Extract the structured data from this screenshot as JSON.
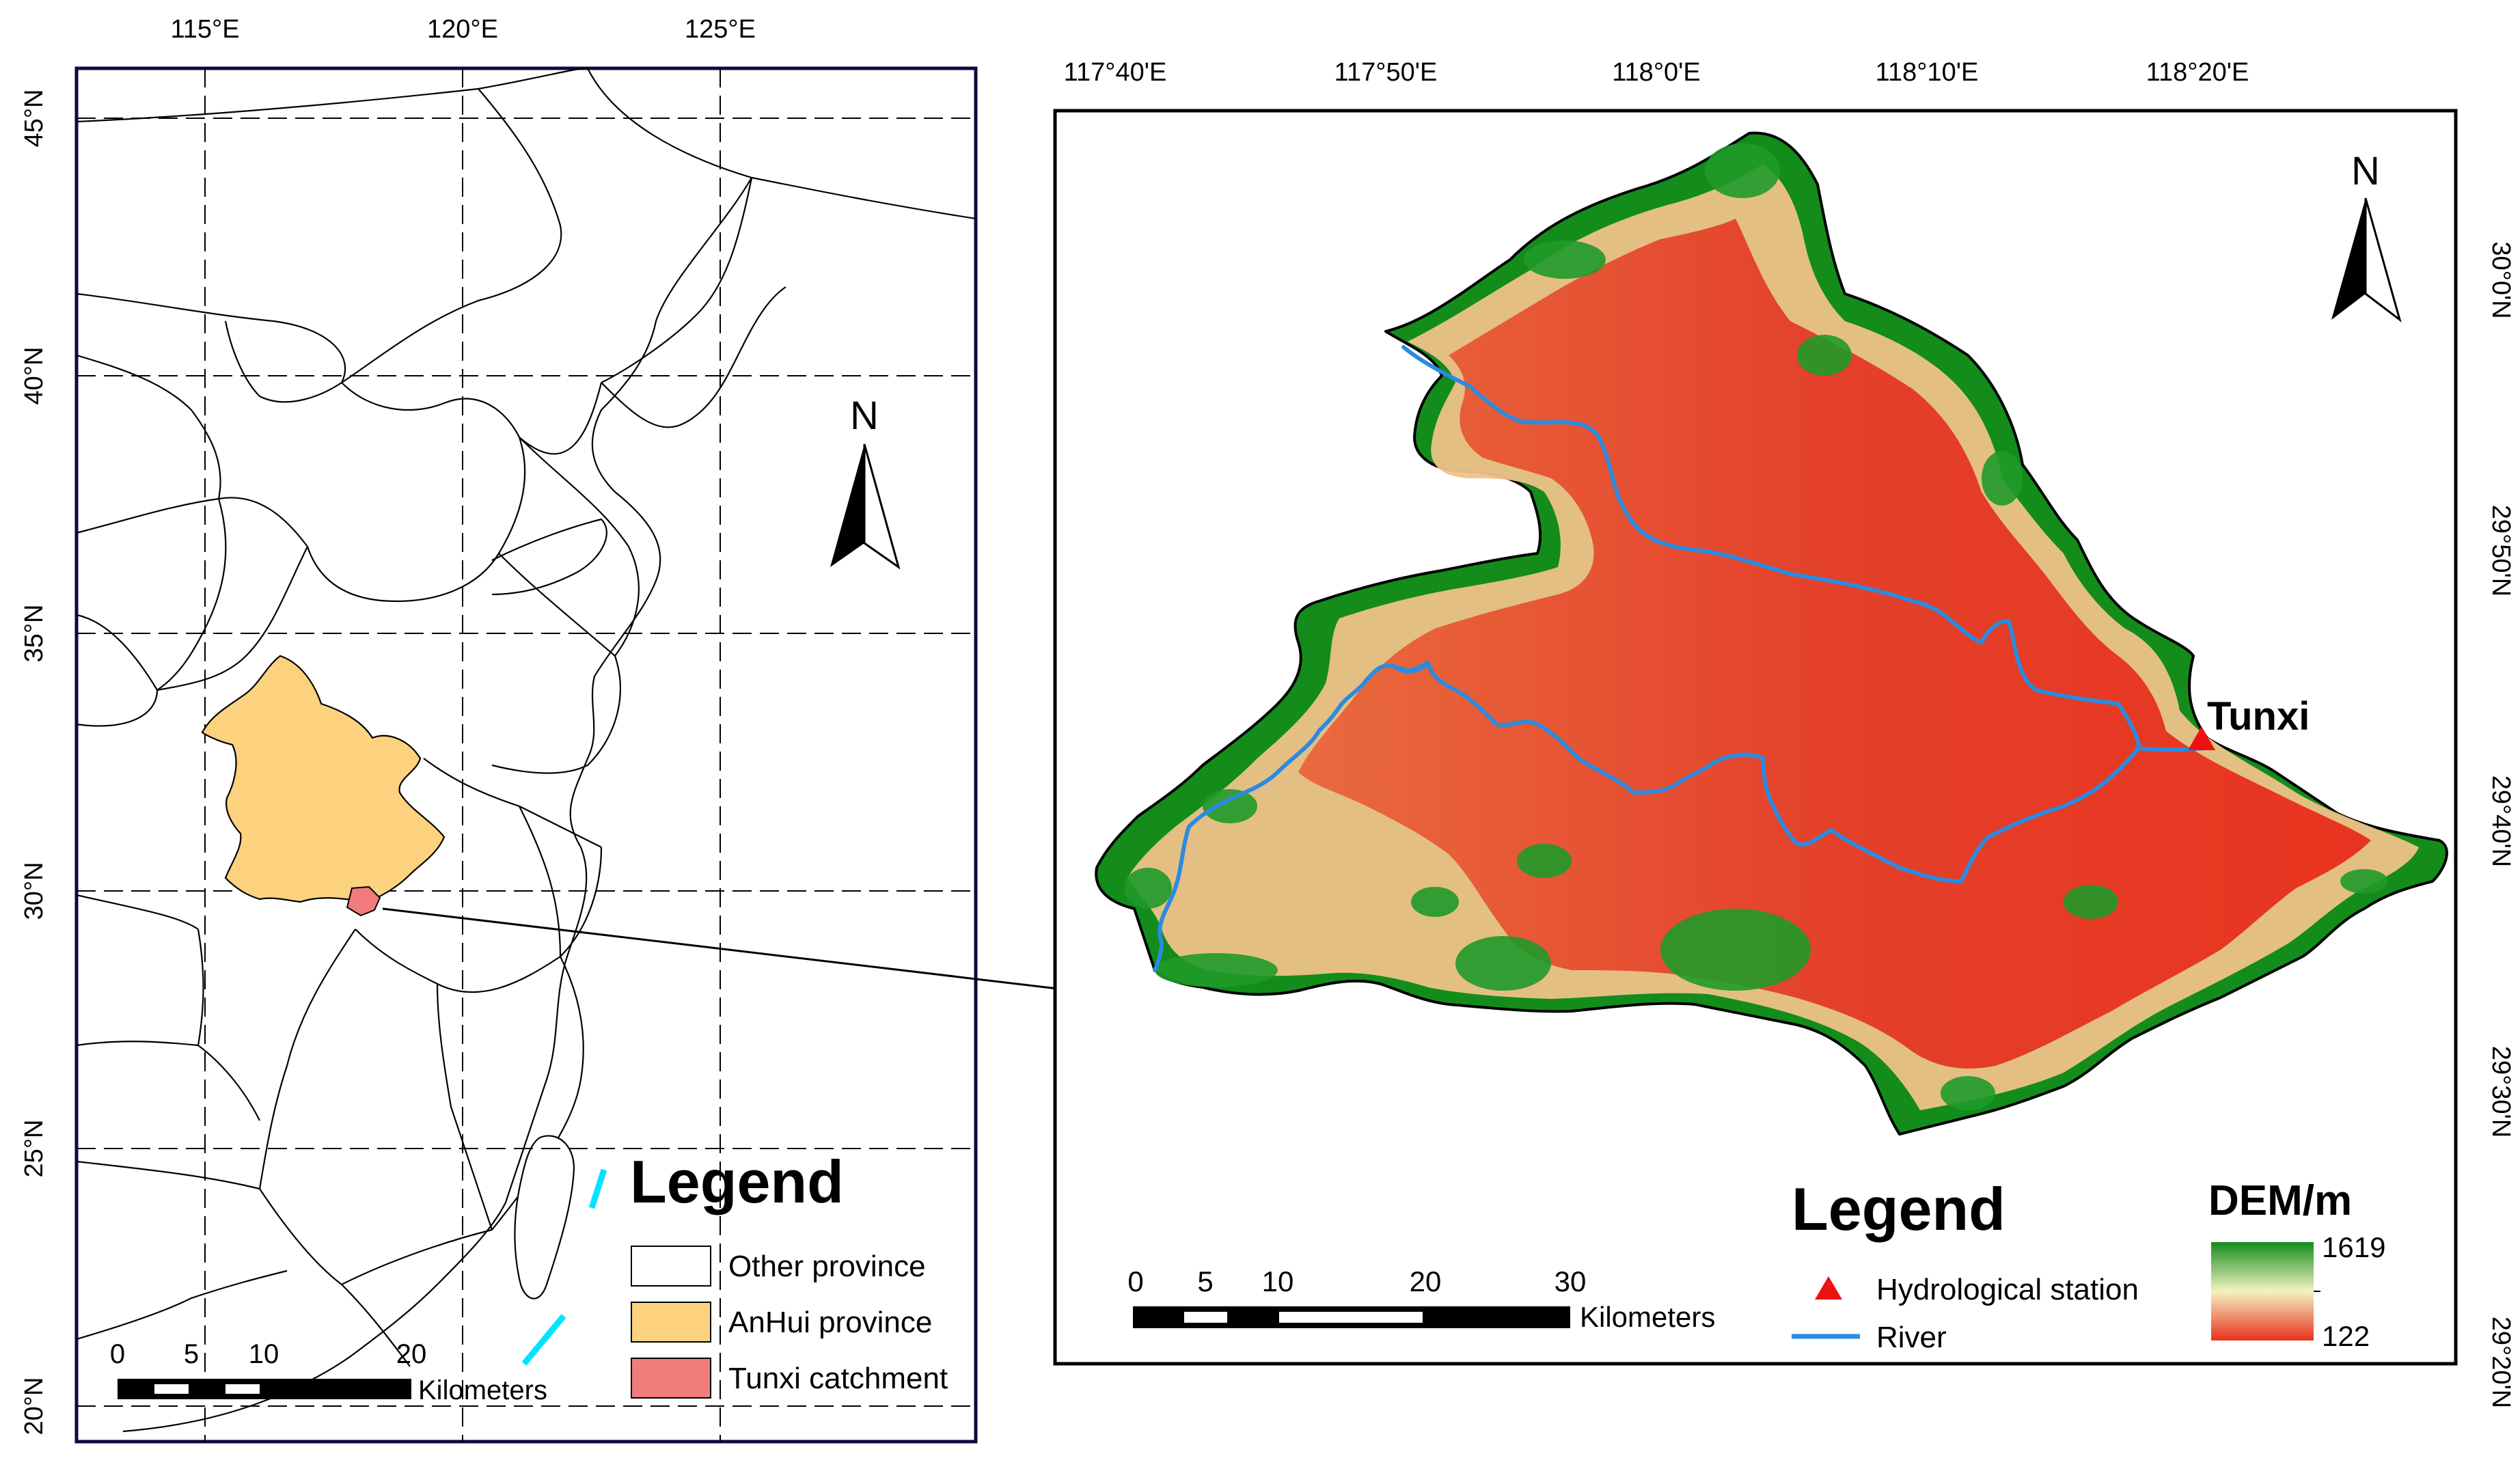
{
  "left_map": {
    "lon_labels": [
      "115°E",
      "120°E",
      "125°E"
    ],
    "lat_labels": [
      "45°N",
      "40°N",
      "35°N",
      "30°N",
      "25°N",
      "20°N"
    ],
    "north_label": "N",
    "legend": {
      "title": "Legend",
      "items": [
        {
          "label": "Other province",
          "color": "#ffffff"
        },
        {
          "label": "AnHui province",
          "color": "#fcd27e"
        },
        {
          "label": "Tunxi catchment",
          "color": "#f07c7c"
        }
      ]
    },
    "scale": {
      "ticks": [
        "0",
        "5",
        "10",
        "20"
      ],
      "unit": "Kilometers"
    }
  },
  "right_map": {
    "lon_labels": [
      "117°40'E",
      "117°50'E",
      "118°0'E",
      "118°10'E",
      "118°20'E"
    ],
    "lat_labels": [
      "30°0'N",
      "29°50'N",
      "29°40'N",
      "29°30'N",
      "29°20'N"
    ],
    "north_label": "N",
    "station_label": "Tunxi",
    "legend": {
      "title": "Legend",
      "station": "Hydrological station",
      "river": "River",
      "dem_title": "DEM/m",
      "dem_max": "1619",
      "dem_min": "122"
    },
    "scale": {
      "ticks": [
        "0",
        "5",
        "10",
        "20",
        "30"
      ],
      "unit": "Kilometers"
    }
  },
  "colors": {
    "frame": "#0b0b40",
    "anhui": "#fcd27e",
    "catchment": "#f07c7c",
    "river": "#2b8be0",
    "station": "#ee1111",
    "dem_high": "#138c1c",
    "dem_mid": "#f4f2c0",
    "dem_low": "#e8321e"
  }
}
